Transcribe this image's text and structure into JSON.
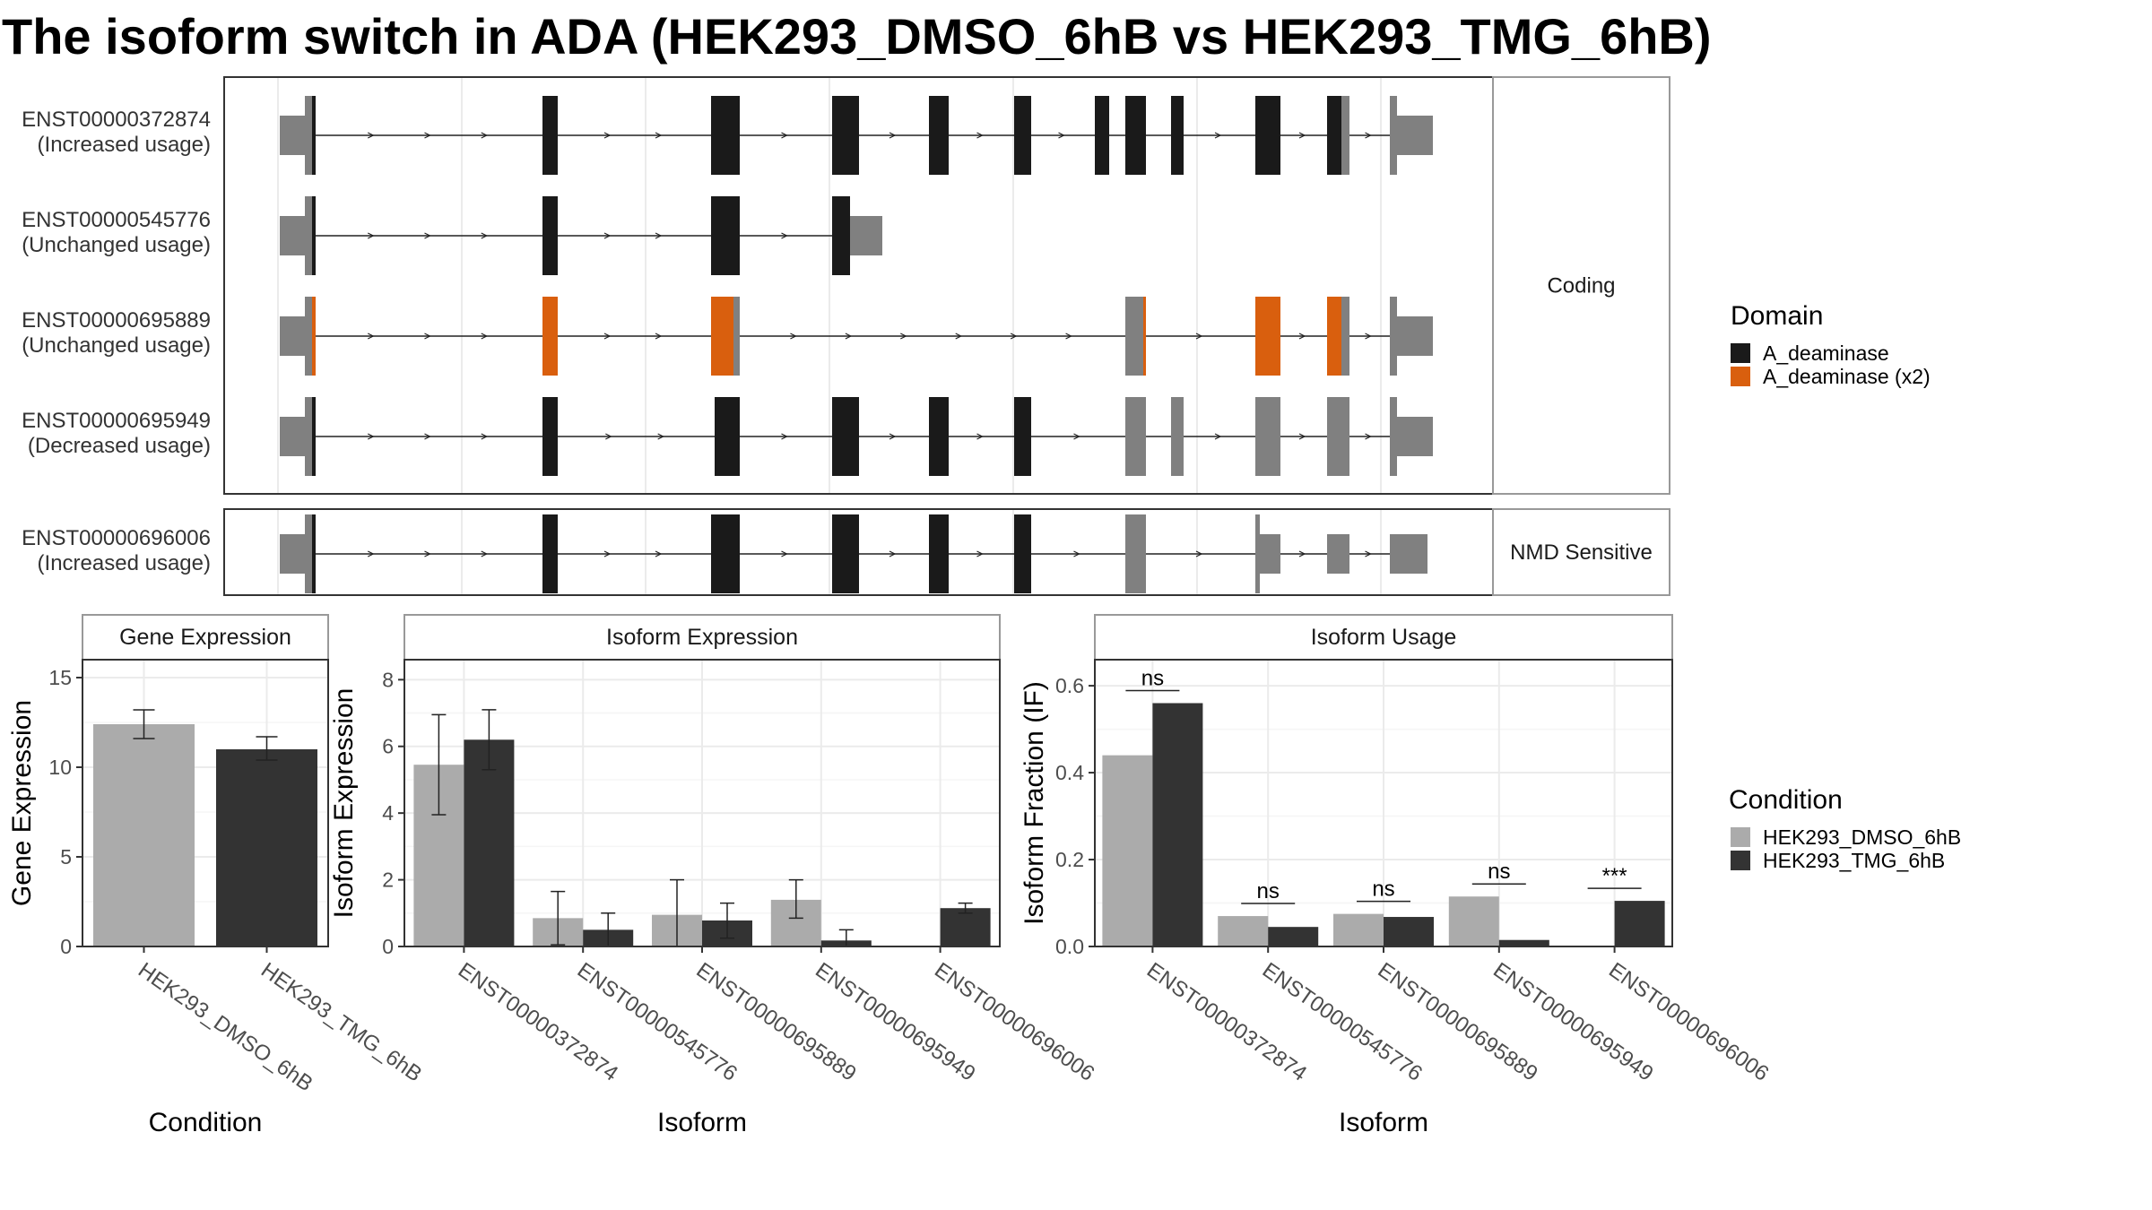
{
  "title": "The isoform switch in ADA (HEK293_DMSO_6hB vs HEK293_TMG_6hB)",
  "colors": {
    "utr": "#808080",
    "domain": "#1a1a1a",
    "domain_x2": "#d95f0e",
    "dmso": "#ababab",
    "tmg": "#333333"
  },
  "structure": {
    "panels": [
      {
        "label": "Coding"
      },
      {
        "label": "NMD Sensitive"
      }
    ],
    "transcripts": [
      {
        "id": "ENST00000372874",
        "usage": "(Increased usage)"
      },
      {
        "id": "ENST00000545776",
        "usage": "(Unchanged usage)"
      },
      {
        "id": "ENST00000695889",
        "usage": "(Unchanged usage)"
      },
      {
        "id": "ENST00000695949",
        "usage": "(Decreased usage)"
      },
      {
        "id": "ENST00000696006",
        "usage": "(Increased usage)"
      }
    ],
    "domain_legend": {
      "title": "Domain",
      "items": [
        {
          "label": "A_deaminase",
          "color": "#1a1a1a"
        },
        {
          "label": "A_deaminase (x2)",
          "color": "#d95f0e"
        }
      ]
    }
  },
  "condition_legend": {
    "title": "Condition",
    "items": [
      {
        "label": "HEK293_DMSO_6hB",
        "color": "#ababab"
      },
      {
        "label": "HEK293_TMG_6hB",
        "color": "#333333"
      }
    ]
  },
  "chart_data": [
    {
      "type": "bar",
      "title": "Gene Expression",
      "xlabel": "Condition",
      "ylabel": "Gene Expression",
      "ylim": [
        0,
        16
      ],
      "yticks": [
        0,
        5,
        10,
        15
      ],
      "categories": [
        "HEK293_DMSO_6hB",
        "HEK293_TMG_6hB"
      ],
      "values": [
        12.4,
        11.0
      ],
      "errors": [
        [
          11.6,
          13.2
        ],
        [
          10.4,
          11.7
        ]
      ],
      "colors": [
        "#ababab",
        "#333333"
      ]
    },
    {
      "type": "bar",
      "title": "Isoform Expression",
      "xlabel": "Isoform",
      "ylabel": "Isoform Expression",
      "ylim": [
        0,
        8.6
      ],
      "yticks": [
        0,
        2,
        4,
        6,
        8
      ],
      "categories": [
        "ENST00000372874",
        "ENST00000545776",
        "ENST00000695889",
        "ENST00000695949",
        "ENST00000696006"
      ],
      "series": [
        {
          "name": "HEK293_DMSO_6hB",
          "values": [
            5.45,
            0.85,
            0.95,
            1.4,
            0.0
          ],
          "errors": [
            [
              3.95,
              6.95
            ],
            [
              0.05,
              1.65
            ],
            [
              0.0,
              2.0
            ],
            [
              0.85,
              2.0
            ],
            [
              0.0,
              0.0
            ]
          ]
        },
        {
          "name": "HEK293_TMG_6hB",
          "values": [
            6.2,
            0.5,
            0.78,
            0.18,
            1.15
          ],
          "errors": [
            [
              5.3,
              7.1
            ],
            [
              0.0,
              1.0
            ],
            [
              0.25,
              1.3
            ],
            [
              0.0,
              0.5
            ],
            [
              1.0,
              1.3
            ]
          ]
        }
      ]
    },
    {
      "type": "bar",
      "title": "Isoform Usage",
      "xlabel": "Isoform",
      "ylabel": "Isoform Fraction (IF)",
      "ylim": [
        0,
        0.66
      ],
      "yticks": [
        0.0,
        0.2,
        0.4,
        0.6
      ],
      "categories": [
        "ENST00000372874",
        "ENST00000545776",
        "ENST00000695889",
        "ENST00000695949",
        "ENST00000696006"
      ],
      "series": [
        {
          "name": "HEK293_DMSO_6hB",
          "values": [
            0.44,
            0.07,
            0.075,
            0.115,
            0.0
          ]
        },
        {
          "name": "HEK293_TMG_6hB",
          "values": [
            0.56,
            0.045,
            0.068,
            0.015,
            0.105
          ]
        }
      ],
      "significance": [
        "ns",
        "ns",
        "ns",
        "ns",
        "***"
      ]
    }
  ]
}
